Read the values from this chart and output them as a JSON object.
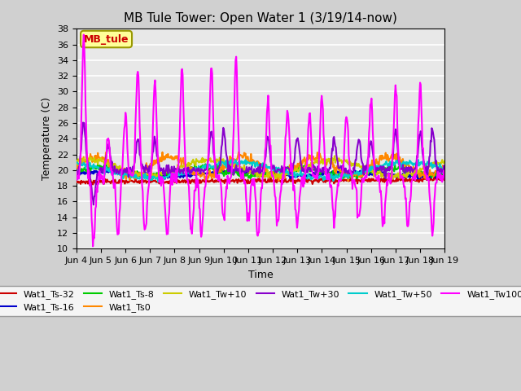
{
  "title": "MB Tule Tower: Open Water 1 (3/19/14-now)",
  "xlabel": "Time",
  "ylabel": "Temperature (C)",
  "ylim": [
    10,
    38
  ],
  "yticks": [
    10,
    12,
    14,
    16,
    18,
    20,
    22,
    24,
    26,
    28,
    30,
    32,
    34,
    36,
    38
  ],
  "xtick_labels": [
    "Jun 4",
    "Jun 5",
    "Jun 6",
    "Jun 7",
    "Jun 8",
    "Jun 9",
    "Jun 10",
    "Jun 11",
    "Jun 12",
    "Jun 13",
    "Jun 14",
    "Jun 15",
    "Jun 16",
    "Jun 17",
    "Jun 18",
    "Jun 19"
  ],
  "annotation_label": "MB_tule",
  "annotation_color": "#cc0000",
  "annotation_bg": "#ffff99",
  "series_order": [
    "Wat1_Ts-32",
    "Wat1_Ts-16",
    "Wat1_Ts-8",
    "Wat1_Ts0",
    "Wat1_Tw+10",
    "Wat1_Tw+30",
    "Wat1_Tw+50",
    "Wat1_Tw100"
  ],
  "series": {
    "Wat1_Ts-32": {
      "color": "#cc0000",
      "lw": 1.5,
      "zorder": 3
    },
    "Wat1_Ts-16": {
      "color": "#0000cc",
      "lw": 1.5,
      "zorder": 3
    },
    "Wat1_Ts-8": {
      "color": "#00cc00",
      "lw": 1.5,
      "zorder": 3
    },
    "Wat1_Ts0": {
      "color": "#ff8800",
      "lw": 1.5,
      "zorder": 3
    },
    "Wat1_Tw+10": {
      "color": "#cccc00",
      "lw": 1.5,
      "zorder": 3
    },
    "Wat1_Tw+30": {
      "color": "#8800cc",
      "lw": 1.5,
      "zorder": 3
    },
    "Wat1_Tw+50": {
      "color": "#00cccc",
      "lw": 1.5,
      "zorder": 3
    },
    "Wat1_Tw100": {
      "color": "#ff00ff",
      "lw": 1.5,
      "zorder": 4
    }
  },
  "legend_ncol": 6,
  "fig_facecolor": "#d0d0d0",
  "plot_facecolor": "#e8e8e8"
}
